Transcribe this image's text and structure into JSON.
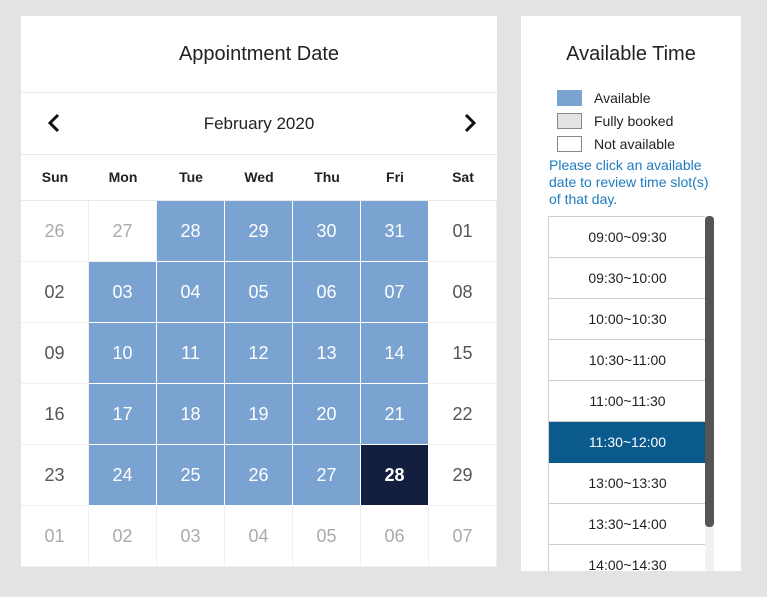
{
  "calendar": {
    "title": "Appointment Date",
    "month_label": "February 2020",
    "prev_icon": "chevron-left-icon",
    "next_icon": "chevron-right-icon",
    "weekdays": [
      "Sun",
      "Mon",
      "Tue",
      "Wed",
      "Thu",
      "Fri",
      "Sat"
    ],
    "weeks": [
      [
        {
          "d": "26",
          "s": "other"
        },
        {
          "d": "27",
          "s": "other"
        },
        {
          "d": "28",
          "s": "avail"
        },
        {
          "d": "29",
          "s": "avail"
        },
        {
          "d": "30",
          "s": "avail"
        },
        {
          "d": "31",
          "s": "avail"
        },
        {
          "d": "01",
          "s": "plain"
        }
      ],
      [
        {
          "d": "02",
          "s": "plain"
        },
        {
          "d": "03",
          "s": "avail"
        },
        {
          "d": "04",
          "s": "avail"
        },
        {
          "d": "05",
          "s": "avail"
        },
        {
          "d": "06",
          "s": "avail"
        },
        {
          "d": "07",
          "s": "avail"
        },
        {
          "d": "08",
          "s": "plain"
        }
      ],
      [
        {
          "d": "09",
          "s": "plain"
        },
        {
          "d": "10",
          "s": "avail"
        },
        {
          "d": "11",
          "s": "avail"
        },
        {
          "d": "12",
          "s": "avail"
        },
        {
          "d": "13",
          "s": "avail"
        },
        {
          "d": "14",
          "s": "avail"
        },
        {
          "d": "15",
          "s": "plain"
        }
      ],
      [
        {
          "d": "16",
          "s": "plain"
        },
        {
          "d": "17",
          "s": "avail"
        },
        {
          "d": "18",
          "s": "avail"
        },
        {
          "d": "19",
          "s": "avail"
        },
        {
          "d": "20",
          "s": "avail"
        },
        {
          "d": "21",
          "s": "avail"
        },
        {
          "d": "22",
          "s": "plain"
        }
      ],
      [
        {
          "d": "23",
          "s": "plain"
        },
        {
          "d": "24",
          "s": "avail"
        },
        {
          "d": "25",
          "s": "avail"
        },
        {
          "d": "26",
          "s": "avail"
        },
        {
          "d": "27",
          "s": "avail"
        },
        {
          "d": "28",
          "s": "selected"
        },
        {
          "d": "29",
          "s": "plain"
        }
      ],
      [
        {
          "d": "01",
          "s": "other"
        },
        {
          "d": "02",
          "s": "other"
        },
        {
          "d": "03",
          "s": "other"
        },
        {
          "d": "04",
          "s": "other"
        },
        {
          "d": "05",
          "s": "other"
        },
        {
          "d": "06",
          "s": "other"
        },
        {
          "d": "07",
          "s": "other"
        }
      ]
    ]
  },
  "time_panel": {
    "title": "Available Time",
    "legend": [
      {
        "label": "Available",
        "kind": "avail"
      },
      {
        "label": "Fully booked",
        "kind": "full"
      },
      {
        "label": "Not available",
        "kind": "none"
      }
    ],
    "hint": "Please click an available date to review time slot(s) of that day.",
    "slots": [
      {
        "label": "09:00~09:30",
        "selected": false
      },
      {
        "label": "09:30~10:00",
        "selected": false
      },
      {
        "label": "10:00~10:30",
        "selected": false
      },
      {
        "label": "10:30~11:00",
        "selected": false
      },
      {
        "label": "11:00~11:30",
        "selected": false
      },
      {
        "label": "11:30~12:00",
        "selected": true
      },
      {
        "label": "13:00~13:30",
        "selected": false
      },
      {
        "label": "13:30~14:00",
        "selected": false
      },
      {
        "label": "14:00~14:30",
        "selected": false
      }
    ]
  },
  "colors": {
    "available": "#7aa3d2",
    "selected_date": "#141e3f",
    "selected_slot": "#0b5a8e",
    "hint_text": "#1d7bbf",
    "page_bg": "#e3e3e3"
  }
}
